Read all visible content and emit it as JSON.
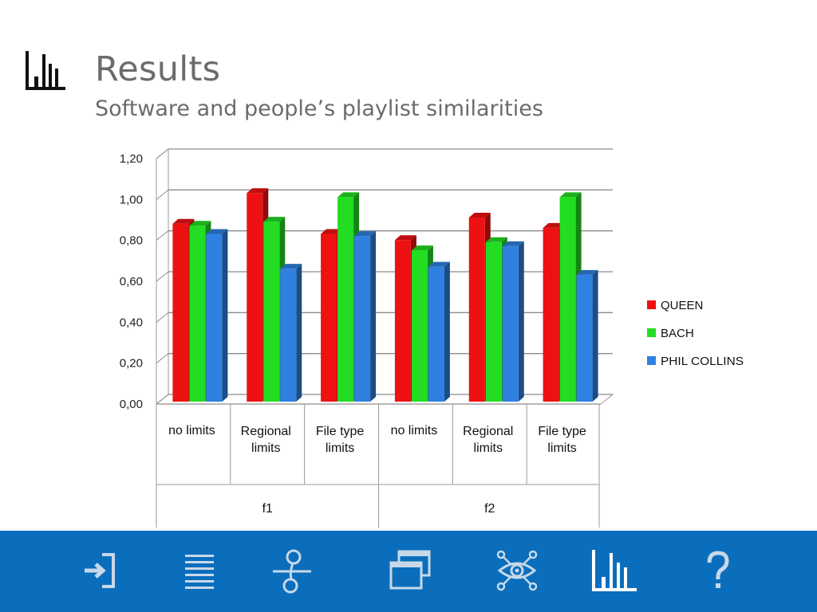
{
  "header": {
    "title": "Results",
    "subtitle": "Software and people’s playlist similarities",
    "icon": "bar-chart-icon"
  },
  "chart_data": {
    "type": "bar",
    "style": "3d-clustered-column",
    "y_ticks": [
      "0,00",
      "0,20",
      "0,40",
      "0,60",
      "0,80",
      "1,00",
      "1,20"
    ],
    "ylim": [
      0,
      1.2
    ],
    "categories": [
      {
        "label": [
          "no limits"
        ],
        "group": "f1"
      },
      {
        "label": [
          "Regional",
          "limits"
        ],
        "group": "f1"
      },
      {
        "label": [
          "File type",
          "limits"
        ],
        "group": "f1"
      },
      {
        "label": [
          "no limits"
        ],
        "group": "f2"
      },
      {
        "label": [
          "Regional",
          "limits"
        ],
        "group": "f2"
      },
      {
        "label": [
          "File type",
          "limits"
        ],
        "group": "f2"
      }
    ],
    "groups": [
      "f1",
      "f2"
    ],
    "series": [
      {
        "name": "QUEEN",
        "color": "#ee1111",
        "values": [
          0.87,
          1.02,
          0.82,
          0.79,
          0.9,
          0.85
        ]
      },
      {
        "name": "BACH",
        "color": "#22dd22",
        "values": [
          0.86,
          0.88,
          1.0,
          0.74,
          0.78,
          1.0
        ]
      },
      {
        "name": "PHIL COLLINS",
        "color": "#2f80e0",
        "values": [
          0.82,
          0.65,
          0.81,
          0.66,
          0.76,
          0.62
        ]
      }
    ],
    "grid": true,
    "legend": "right"
  },
  "footer": {
    "background": "#0a6ebd",
    "icons": [
      "enter-icon",
      "list-icon",
      "flow-icon",
      "windows-icon",
      "vision-network-icon",
      "bar-chart-icon",
      "help-icon"
    ]
  }
}
